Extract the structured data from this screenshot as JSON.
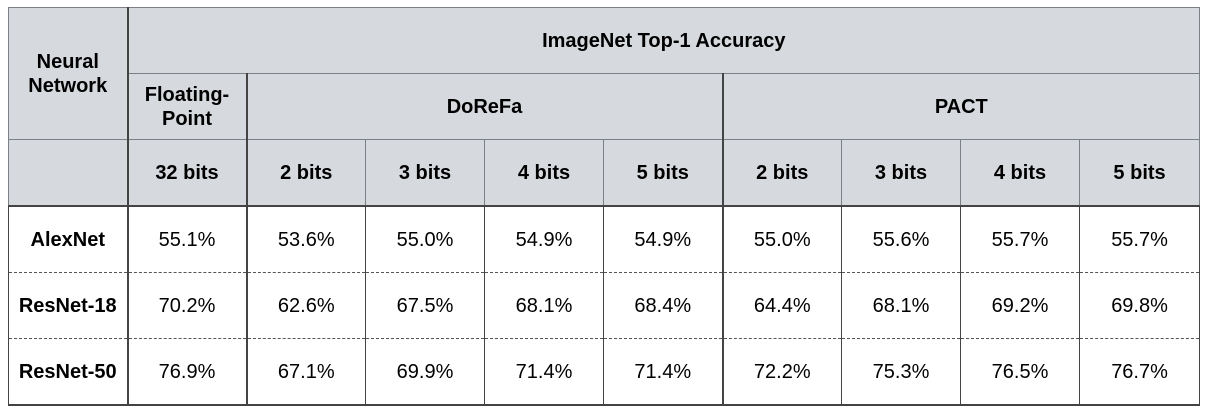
{
  "table": {
    "corner_header": [
      "Neural",
      "Network"
    ],
    "top_header": "ImageNet Top-1 Accuracy",
    "groups": [
      {
        "label": [
          "Floating-",
          "Point"
        ]
      },
      {
        "label": "DoReFa"
      },
      {
        "label": "PACT"
      }
    ],
    "bit_headers": [
      "32 bits",
      "2 bits",
      "3 bits",
      "4 bits",
      "5 bits",
      "2 bits",
      "3 bits",
      "4 bits",
      "5 bits"
    ],
    "rows": [
      {
        "network": "AlexNet",
        "values": [
          "55.1%",
          "53.6%",
          "55.0%",
          "54.9%",
          "54.9%",
          "55.0%",
          "55.6%",
          "55.7%",
          "55.7%"
        ]
      },
      {
        "network": "ResNet-18",
        "values": [
          "70.2%",
          "62.6%",
          "67.5%",
          "68.1%",
          "68.4%",
          "64.4%",
          "68.1%",
          "69.2%",
          "69.8%"
        ]
      },
      {
        "network": "ResNet-50",
        "values": [
          "76.9%",
          "67.1%",
          "69.9%",
          "71.4%",
          "71.4%",
          "72.2%",
          "75.3%",
          "76.5%",
          "76.7%"
        ]
      }
    ]
  }
}
